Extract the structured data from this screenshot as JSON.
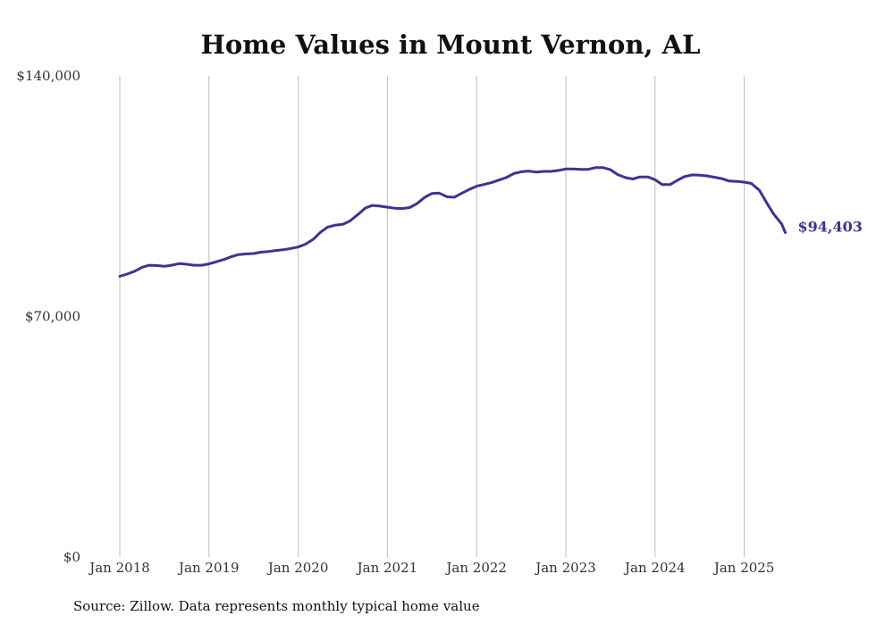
{
  "chart_data": {
    "type": "line",
    "title": "Home Values in Mount Vernon, AL",
    "xlabel": "",
    "ylabel": "",
    "ylim": [
      0,
      140000
    ],
    "y_ticks": [
      0,
      70000,
      140000
    ],
    "y_tick_labels": [
      "$0",
      "$70,000",
      "$140,000"
    ],
    "x_ticks": [
      2018,
      2019,
      2020,
      2021,
      2022,
      2023,
      2024,
      2025
    ],
    "x_tick_labels": [
      "Jan 2018",
      "Jan 2019",
      "Jan 2020",
      "Jan 2021",
      "Jan 2022",
      "Jan 2023",
      "Jan 2024",
      "Jan 2025"
    ],
    "grid": "vertical",
    "series": [
      {
        "name": "Typical home value",
        "color": "#3b3494",
        "end_label": "$94,403",
        "points": [
          [
            2018.0,
            81700
          ],
          [
            2018.08,
            82300
          ],
          [
            2018.17,
            83200
          ],
          [
            2018.25,
            84300
          ],
          [
            2018.33,
            84900
          ],
          [
            2018.42,
            84800
          ],
          [
            2018.5,
            84600
          ],
          [
            2018.58,
            84900
          ],
          [
            2018.67,
            85400
          ],
          [
            2018.75,
            85200
          ],
          [
            2018.83,
            84900
          ],
          [
            2018.92,
            84900
          ],
          [
            2019.0,
            85300
          ],
          [
            2019.08,
            85900
          ],
          [
            2019.17,
            86600
          ],
          [
            2019.25,
            87400
          ],
          [
            2019.33,
            88000
          ],
          [
            2019.42,
            88200
          ],
          [
            2019.5,
            88300
          ],
          [
            2019.58,
            88700
          ],
          [
            2019.67,
            88900
          ],
          [
            2019.75,
            89200
          ],
          [
            2019.83,
            89400
          ],
          [
            2019.92,
            89800
          ],
          [
            2020.0,
            90200
          ],
          [
            2020.08,
            91000
          ],
          [
            2020.17,
            92500
          ],
          [
            2020.25,
            94500
          ],
          [
            2020.33,
            96000
          ],
          [
            2020.42,
            96600
          ],
          [
            2020.5,
            96800
          ],
          [
            2020.58,
            97800
          ],
          [
            2020.67,
            99700
          ],
          [
            2020.75,
            101500
          ],
          [
            2020.83,
            102300
          ],
          [
            2020.92,
            102100
          ],
          [
            2021.0,
            101800
          ],
          [
            2021.08,
            101500
          ],
          [
            2021.17,
            101400
          ],
          [
            2021.25,
            101700
          ],
          [
            2021.33,
            102800
          ],
          [
            2021.42,
            104700
          ],
          [
            2021.5,
            105800
          ],
          [
            2021.58,
            105900
          ],
          [
            2021.67,
            104800
          ],
          [
            2021.75,
            104700
          ],
          [
            2021.83,
            105800
          ],
          [
            2021.92,
            107000
          ],
          [
            2022.0,
            107900
          ],
          [
            2022.08,
            108400
          ],
          [
            2022.17,
            109000
          ],
          [
            2022.25,
            109700
          ],
          [
            2022.33,
            110400
          ],
          [
            2022.42,
            111600
          ],
          [
            2022.5,
            112100
          ],
          [
            2022.58,
            112300
          ],
          [
            2022.67,
            112000
          ],
          [
            2022.75,
            112200
          ],
          [
            2022.83,
            112200
          ],
          [
            2022.92,
            112500
          ],
          [
            2023.0,
            112900
          ],
          [
            2023.08,
            112900
          ],
          [
            2023.17,
            112800
          ],
          [
            2023.25,
            112800
          ],
          [
            2023.33,
            113300
          ],
          [
            2023.42,
            113300
          ],
          [
            2023.5,
            112700
          ],
          [
            2023.58,
            111300
          ],
          [
            2023.67,
            110400
          ],
          [
            2023.75,
            110000
          ],
          [
            2023.83,
            110600
          ],
          [
            2023.92,
            110600
          ],
          [
            2024.0,
            109800
          ],
          [
            2024.08,
            108400
          ],
          [
            2024.17,
            108400
          ],
          [
            2024.25,
            109600
          ],
          [
            2024.33,
            110700
          ],
          [
            2024.42,
            111200
          ],
          [
            2024.5,
            111100
          ],
          [
            2024.58,
            110900
          ],
          [
            2024.67,
            110500
          ],
          [
            2024.75,
            110100
          ],
          [
            2024.83,
            109400
          ],
          [
            2024.92,
            109300
          ],
          [
            2025.0,
            109100
          ],
          [
            2025.08,
            108700
          ],
          [
            2025.17,
            106700
          ],
          [
            2025.25,
            103200
          ],
          [
            2025.33,
            99800
          ],
          [
            2025.42,
            96900
          ],
          [
            2025.42,
            94403
          ]
        ]
      }
    ],
    "source_note": "Source: Zillow. Data represents monthly typical home value"
  }
}
